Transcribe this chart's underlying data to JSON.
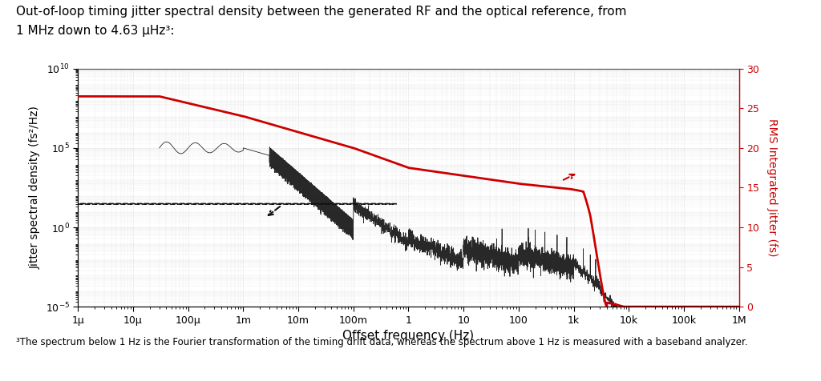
{
  "title_line1": "Out-of-loop timing jitter spectral density between the generated RF and the optical reference, from",
  "title_line2": "1 MHz down to 4.63 μHz³:",
  "footnote": "³The spectrum below 1 Hz is the Fourier transformation of the timing drift data, whereas the spectrum above 1 Hz is measured with a baseband analyzer.",
  "xlabel": "Offset frequency (Hz)",
  "ylabel_left": "Jitter spectral density (fs²/Hz)",
  "ylabel_right": "RMS Integrated Jitter (fs)",
  "ylim_right": [
    0,
    30
  ],
  "xtick_positions": [
    1e-06,
    1e-05,
    0.0001,
    0.001,
    0.01,
    0.1,
    1.0,
    10.0,
    100.0,
    1000.0,
    10000.0,
    100000.0,
    1000000.0
  ],
  "xtick_labels": [
    "1μ",
    "10μ",
    "100μ",
    "1m",
    "10m",
    "100m",
    "1",
    "10",
    "100",
    "1k",
    "10k",
    "100k",
    "1M"
  ],
  "grid_color": "#cccccc",
  "line_color_black": "#111111",
  "line_color_red": "#cc0000",
  "background_color": "#ffffff",
  "title_fontsize": 11,
  "axis_fontsize": 10,
  "tick_fontsize": 9,
  "footnote_fontsize": 8.5
}
